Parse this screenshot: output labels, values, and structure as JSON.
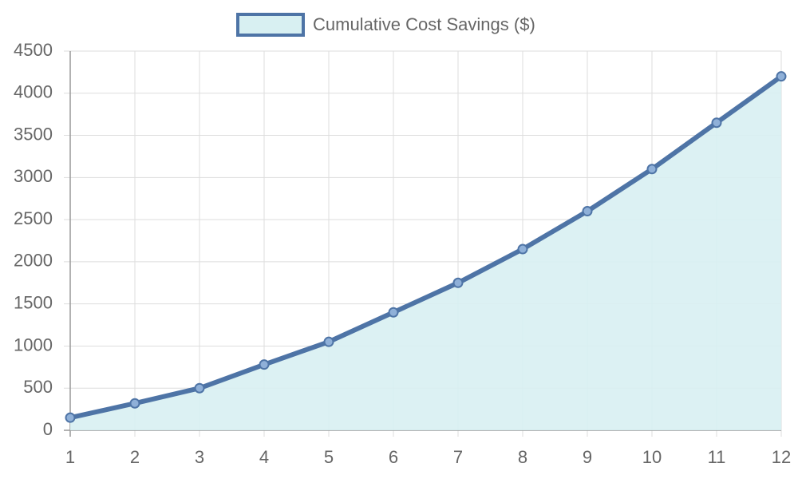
{
  "chart_data": {
    "type": "line",
    "x": [
      1,
      2,
      3,
      4,
      5,
      6,
      7,
      8,
      9,
      10,
      11,
      12
    ],
    "xlim": [
      1,
      12
    ],
    "xticks": [
      1,
      2,
      3,
      4,
      5,
      6,
      7,
      8,
      9,
      10,
      11,
      12
    ],
    "ylim": [
      0,
      4500
    ],
    "yticks": [
      0,
      500,
      1000,
      1500,
      2000,
      2500,
      3000,
      3500,
      4000,
      4500
    ],
    "grid": true,
    "fill": true,
    "legend": "top",
    "series": [
      {
        "name": "Cumulative Cost Savings ($)",
        "color": "#4e74a6",
        "fill_color": "#d8f0f2",
        "marker_color": "#8fb0d8",
        "values": [
          150,
          320,
          500,
          780,
          1050,
          1400,
          1750,
          2150,
          2600,
          3100,
          3650,
          4200
        ]
      }
    ]
  }
}
